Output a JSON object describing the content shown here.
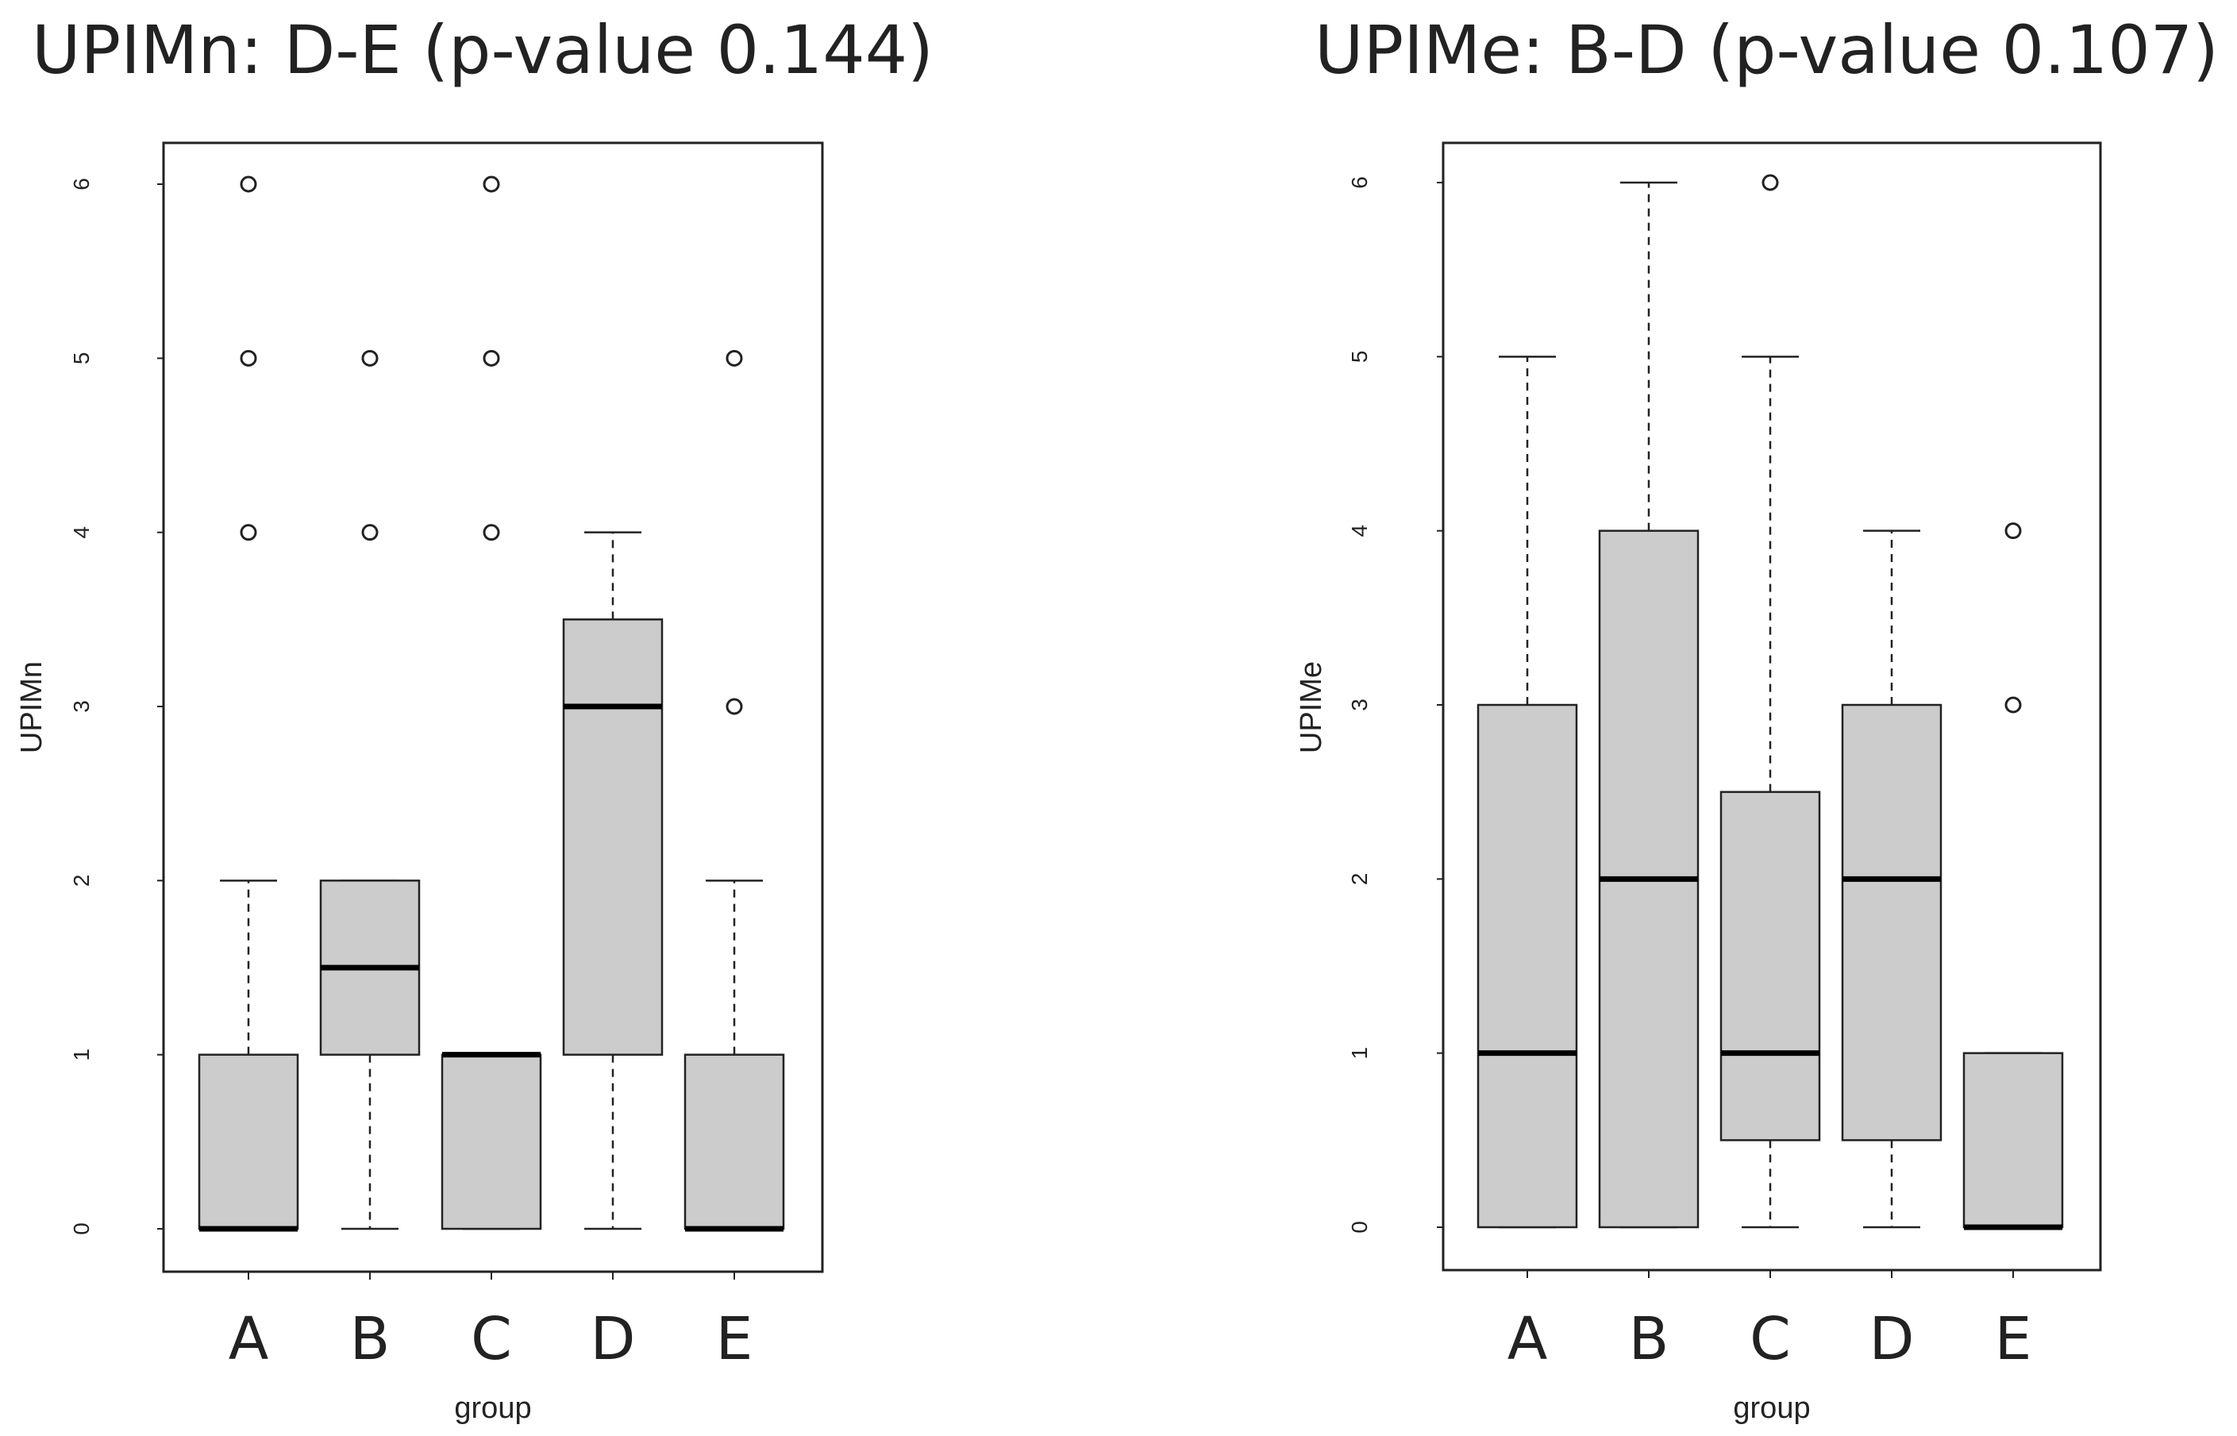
{
  "chart_data": [
    {
      "type": "boxplot",
      "title": "UPIMn: D-E (p-value 0.144)",
      "xlabel": "group",
      "ylabel": "UPIMn",
      "ylim": [
        0,
        6
      ],
      "yticks": [
        "0",
        "1",
        "2",
        "3",
        "4",
        "5",
        "6"
      ],
      "categories": [
        "A",
        "B",
        "C",
        "D",
        "E"
      ],
      "boxes": [
        {
          "group": "A",
          "q1": 0,
          "median": 0,
          "q3": 1,
          "whisker_low": 0,
          "whisker_high": 2,
          "outliers": [
            4,
            5,
            6
          ]
        },
        {
          "group": "B",
          "q1": 1,
          "median": 1.5,
          "q3": 2,
          "whisker_low": 0,
          "whisker_high": 2,
          "outliers": [
            4,
            5
          ]
        },
        {
          "group": "C",
          "q1": 0,
          "median": 1,
          "q3": 1,
          "whisker_low": 0,
          "whisker_high": 1,
          "outliers": [
            4,
            5,
            6
          ]
        },
        {
          "group": "D",
          "q1": 1,
          "median": 3,
          "q3": 3.5,
          "whisker_low": 0,
          "whisker_high": 4,
          "outliers": []
        },
        {
          "group": "E",
          "q1": 0,
          "median": 0,
          "q3": 1,
          "whisker_low": 0,
          "whisker_high": 2,
          "outliers": [
            3,
            5
          ]
        }
      ]
    },
    {
      "type": "boxplot",
      "title": "UPIMe: B-D (p-value 0.107)",
      "xlabel": "group",
      "ylabel": "UPIMe",
      "ylim": [
        0,
        6
      ],
      "yticks": [
        "0",
        "1",
        "2",
        "3",
        "4",
        "5",
        "6"
      ],
      "categories": [
        "A",
        "B",
        "C",
        "D",
        "E"
      ],
      "boxes": [
        {
          "group": "A",
          "q1": 0,
          "median": 1,
          "q3": 3,
          "whisker_low": 0,
          "whisker_high": 5,
          "outliers": []
        },
        {
          "group": "B",
          "q1": 0,
          "median": 2,
          "q3": 4,
          "whisker_low": 0,
          "whisker_high": 6,
          "outliers": []
        },
        {
          "group": "C",
          "q1": 0.5,
          "median": 1,
          "q3": 2.5,
          "whisker_low": 0,
          "whisker_high": 5,
          "outliers": [
            6
          ]
        },
        {
          "group": "D",
          "q1": 0.5,
          "median": 2,
          "q3": 3,
          "whisker_low": 0,
          "whisker_high": 4,
          "outliers": []
        },
        {
          "group": "E",
          "q1": 0,
          "median": 0,
          "q3": 1,
          "whisker_low": 0,
          "whisker_high": 1,
          "outliers": [
            3,
            4
          ]
        }
      ]
    }
  ],
  "colors": {
    "box_fill": "#cccccc",
    "stroke": "#222222",
    "median": "#000000",
    "background": "#ffffff"
  }
}
